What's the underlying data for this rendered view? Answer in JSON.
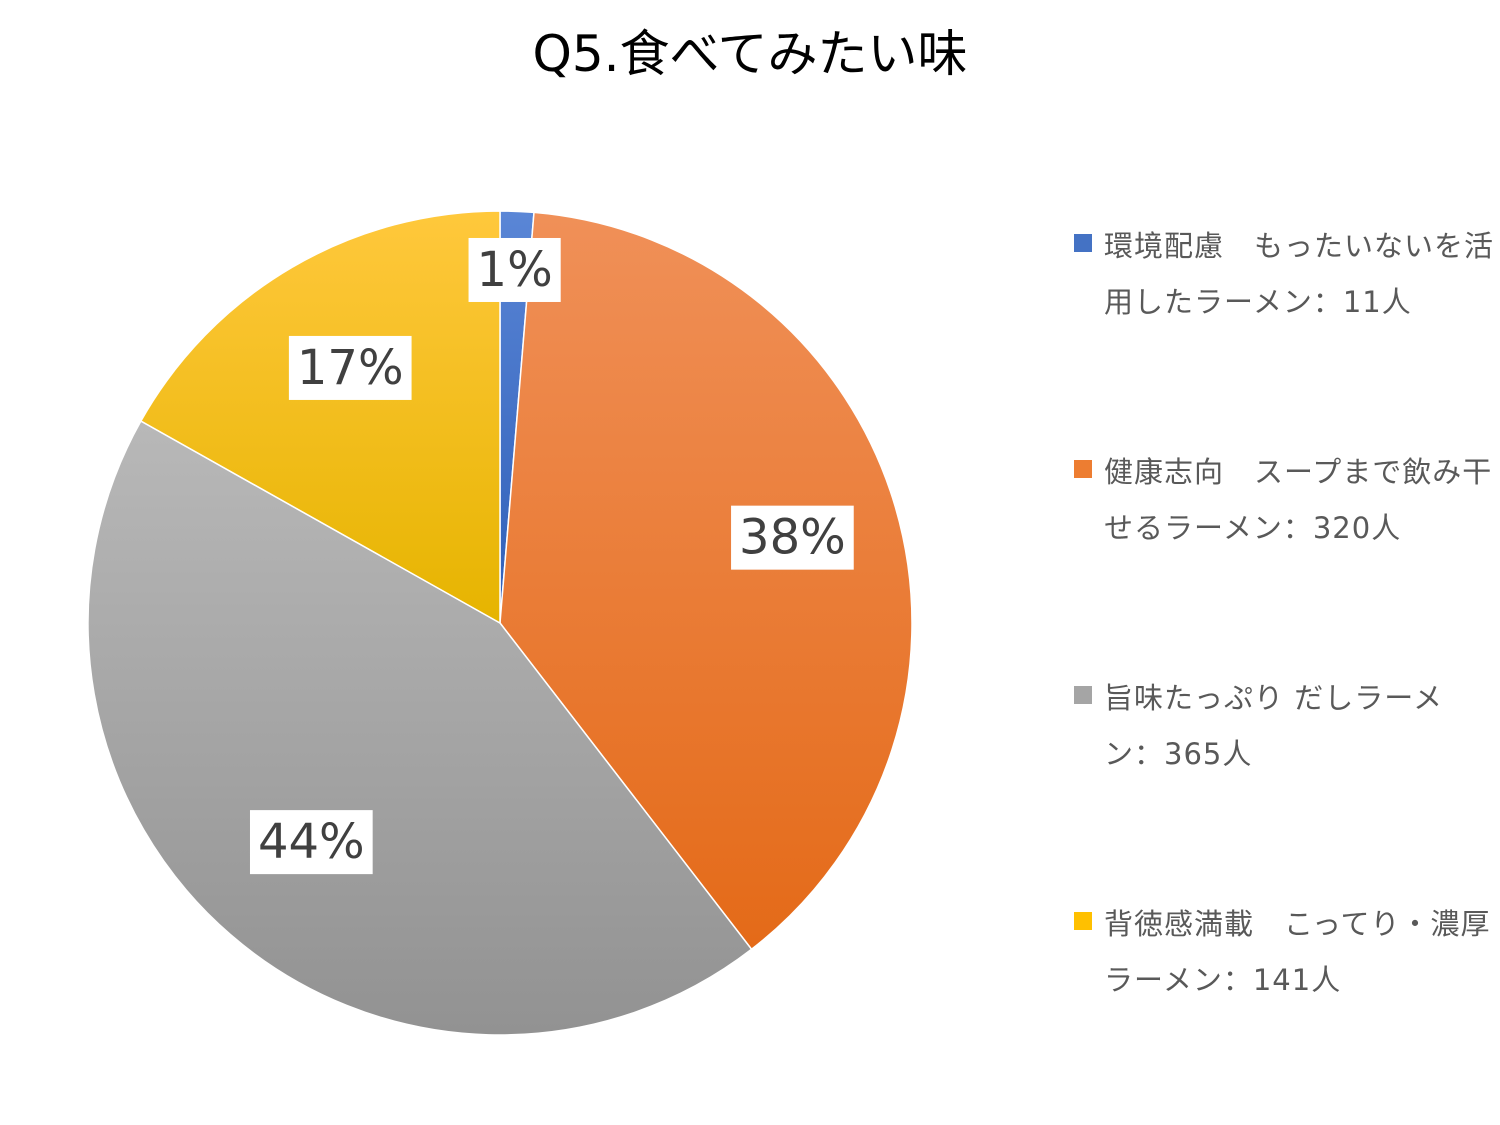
{
  "chart_data": {
    "type": "pie",
    "title": "Q5.食べてみたい味",
    "legend_position": "right",
    "slices": [
      {
        "label": "環境配慮　もったいないを活用したラーメン：11人",
        "value": 11,
        "percent_label": "1%",
        "color": "#4472C4"
      },
      {
        "label": "健康志向　スープまで飲み干せるラーメン：320人",
        "value": 320,
        "percent_label": "38%",
        "color": "#ED7D31"
      },
      {
        "label": "旨味たっぷり だしラーメン：365人",
        "value": 365,
        "percent_label": "44%",
        "color": "#A5A5A5"
      },
      {
        "label": "背徳感満載　こってり・濃厚ラーメン：141人",
        "value": 141,
        "percent_label": "17%",
        "color": "#FFC000"
      }
    ]
  }
}
